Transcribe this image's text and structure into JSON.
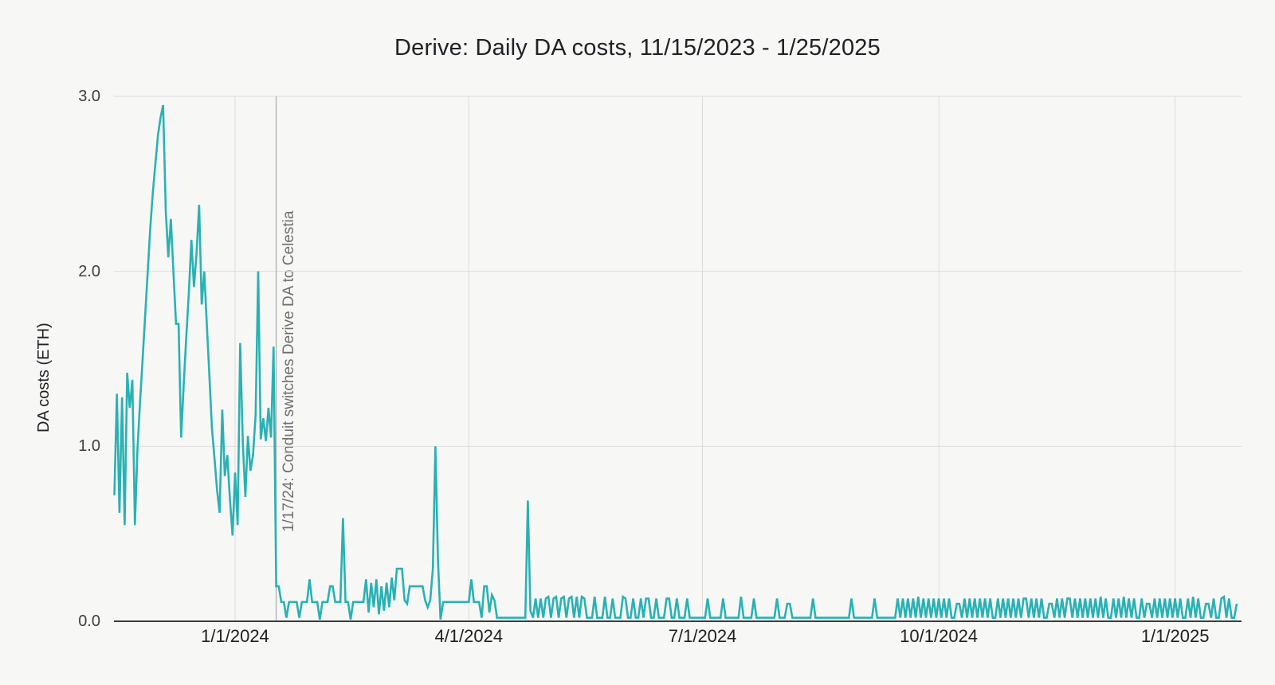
{
  "page": {
    "background_color": "#f7f8f6"
  },
  "colors": {
    "series_line": "#2ab1b4",
    "gridline": "#dcdcdc",
    "annotation_line": "#b0b0b0",
    "axis_line": "#3b3b3b",
    "title_text": "#202124",
    "tick_text": "#1f1f1f",
    "annotation_text": "#6f6f6f"
  },
  "chart_data": {
    "type": "line",
    "title": "Derive: Daily DA costs, 11/15/2023 - 1/25/2025",
    "xlabel": "",
    "ylabel": "DA costs (ETH)",
    "x_start": "11/15/2023",
    "x_end": "1/25/2025",
    "x_unit": "day",
    "ylim": [
      0,
      3
    ],
    "grid": true,
    "legend": "none",
    "y_ticks": [
      3,
      2,
      1,
      0
    ],
    "y_tick_labels": [
      "3.0",
      "2.0",
      "1.0",
      "0.0"
    ],
    "x_tick_labels": [
      "1/1/2024",
      "4/1/2024",
      "7/1/2024",
      "10/1/2024",
      "1/1/2025"
    ],
    "x_tick_day_offsets": [
      47,
      138,
      229,
      321,
      413
    ],
    "annotation": {
      "text": "1/17/24: Conduit switches Derive DA to Celestia",
      "date": "1/17/2024",
      "day_offset": 63
    },
    "series_name": "Daily DA costs (ETH)",
    "values": [
      0.72,
      1.3,
      0.62,
      1.28,
      0.55,
      1.42,
      1.22,
      1.38,
      0.55,
      0.98,
      1.25,
      1.5,
      1.75,
      2.0,
      2.25,
      2.45,
      2.62,
      2.78,
      2.88,
      2.95,
      2.35,
      2.08,
      2.3,
      2.0,
      1.7,
      1.7,
      1.05,
      1.35,
      1.62,
      1.88,
      2.18,
      1.91,
      2.1,
      2.38,
      1.81,
      2.0,
      1.7,
      1.4,
      1.1,
      0.93,
      0.75,
      0.62,
      1.21,
      0.83,
      0.95,
      0.7,
      0.49,
      0.85,
      0.55,
      1.59,
      1.02,
      0.71,
      1.06,
      0.86,
      0.95,
      1.18,
      2.0,
      1.04,
      1.16,
      1.03,
      1.22,
      1.05,
      1.57,
      0.2,
      0.2,
      0.11,
      0.11,
      0.02,
      0.11,
      0.11,
      0.11,
      0.11,
      0.02,
      0.11,
      0.11,
      0.11,
      0.24,
      0.11,
      0.11,
      0.11,
      0.01,
      0.11,
      0.11,
      0.11,
      0.2,
      0.2,
      0.11,
      0.11,
      0.11,
      0.59,
      0.11,
      0.11,
      0.01,
      0.11,
      0.11,
      0.11,
      0.11,
      0.11,
      0.24,
      0.05,
      0.22,
      0.08,
      0.24,
      0.04,
      0.2,
      0.06,
      0.22,
      0.08,
      0.25,
      0.12,
      0.3,
      0.3,
      0.3,
      0.12,
      0.1,
      0.2,
      0.2,
      0.2,
      0.2,
      0.2,
      0.2,
      0.12,
      0.08,
      0.12,
      0.3,
      1.0,
      0.35,
      0.01,
      0.11,
      0.11,
      0.11,
      0.11,
      0.11,
      0.11,
      0.11,
      0.11,
      0.11,
      0.11,
      0.11,
      0.24,
      0.11,
      0.11,
      0.11,
      0.02,
      0.2,
      0.2,
      0.05,
      0.15,
      0.12,
      0.02,
      0.02,
      0.02,
      0.02,
      0.02,
      0.02,
      0.02,
      0.02,
      0.02,
      0.02,
      0.02,
      0.02,
      0.69,
      0.06,
      0.02,
      0.13,
      0.02,
      0.13,
      0.02,
      0.13,
      0.14,
      0.02,
      0.13,
      0.14,
      0.02,
      0.13,
      0.14,
      0.02,
      0.13,
      0.14,
      0.02,
      0.14,
      0.02,
      0.14,
      0.13,
      0.02,
      0.02,
      0.02,
      0.14,
      0.02,
      0.02,
      0.02,
      0.14,
      0.02,
      0.02,
      0.13,
      0.02,
      0.02,
      0.02,
      0.14,
      0.13,
      0.02,
      0.02,
      0.13,
      0.02,
      0.02,
      0.13,
      0.02,
      0.13,
      0.13,
      0.02,
      0.02,
      0.13,
      0.02,
      0.02,
      0.02,
      0.13,
      0.13,
      0.02,
      0.02,
      0.13,
      0.02,
      0.02,
      0.02,
      0.13,
      0.02,
      0.02,
      0.02,
      0.02,
      0.02,
      0.02,
      0.02,
      0.13,
      0.02,
      0.02,
      0.02,
      0.02,
      0.02,
      0.13,
      0.02,
      0.02,
      0.02,
      0.02,
      0.02,
      0.02,
      0.14,
      0.02,
      0.02,
      0.02,
      0.02,
      0.13,
      0.02,
      0.02,
      0.02,
      0.02,
      0.02,
      0.02,
      0.02,
      0.02,
      0.13,
      0.02,
      0.02,
      0.02,
      0.1,
      0.1,
      0.02,
      0.02,
      0.02,
      0.02,
      0.02,
      0.02,
      0.02,
      0.02,
      0.13,
      0.02,
      0.02,
      0.02,
      0.02,
      0.02,
      0.02,
      0.02,
      0.02,
      0.02,
      0.02,
      0.02,
      0.02,
      0.02,
      0.02,
      0.13,
      0.02,
      0.02,
      0.02,
      0.02,
      0.02,
      0.02,
      0.02,
      0.02,
      0.13,
      0.02,
      0.02,
      0.02,
      0.02,
      0.02,
      0.02,
      0.02,
      0.02,
      0.13,
      0.02,
      0.13,
      0.02,
      0.13,
      0.02,
      0.13,
      0.02,
      0.14,
      0.02,
      0.13,
      0.02,
      0.13,
      0.02,
      0.13,
      0.02,
      0.13,
      0.02,
      0.13,
      0.02,
      0.13,
      0.02,
      0.02,
      0.1,
      0.1,
      0.02,
      0.13,
      0.02,
      0.13,
      0.02,
      0.13,
      0.02,
      0.13,
      0.02,
      0.13,
      0.02,
      0.13,
      0.02,
      0.02,
      0.13,
      0.02,
      0.13,
      0.02,
      0.13,
      0.02,
      0.13,
      0.02,
      0.13,
      0.02,
      0.13,
      0.13,
      0.02,
      0.13,
      0.02,
      0.13,
      0.02,
      0.13,
      0.02,
      0.02,
      0.1,
      0.1,
      0.02,
      0.13,
      0.02,
      0.13,
      0.02,
      0.13,
      0.13,
      0.02,
      0.13,
      0.02,
      0.13,
      0.02,
      0.13,
      0.02,
      0.13,
      0.02,
      0.13,
      0.02,
      0.14,
      0.02,
      0.13,
      0.02,
      0.02,
      0.13,
      0.02,
      0.13,
      0.02,
      0.14,
      0.02,
      0.13,
      0.02,
      0.13,
      0.02,
      0.02,
      0.13,
      0.02,
      0.1,
      0.1,
      0.02,
      0.13,
      0.02,
      0.13,
      0.02,
      0.13,
      0.02,
      0.13,
      0.02,
      0.13,
      0.02,
      0.13,
      0.02,
      0.02,
      0.13,
      0.02,
      0.14,
      0.02,
      0.13,
      0.02,
      0.02,
      0.1,
      0.1,
      0.02,
      0.13,
      0.02,
      0.02,
      0.13,
      0.14,
      0.02,
      0.13,
      0.02,
      0.02,
      0.1
    ]
  }
}
